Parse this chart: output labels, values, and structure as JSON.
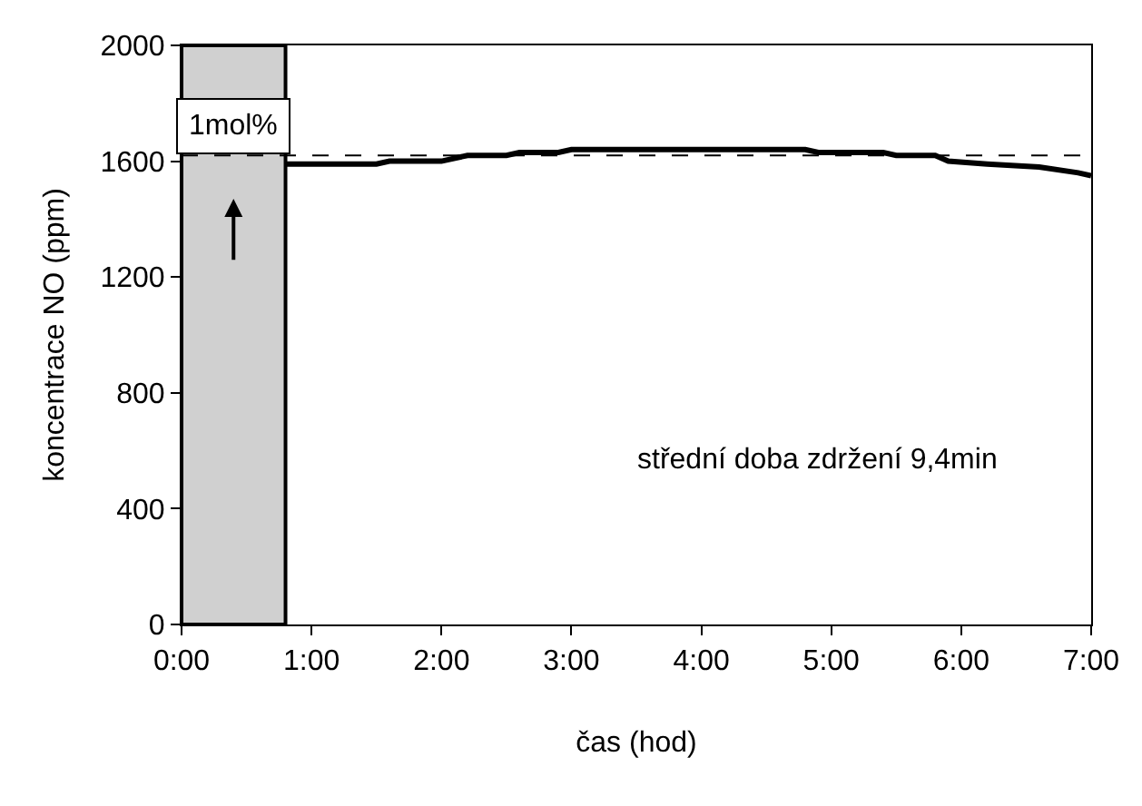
{
  "chart_data": {
    "type": "line",
    "xlabel": "čas (hod)",
    "ylabel": "koncentrace NO (ppm)",
    "x": [
      0.8,
      1.5,
      1.6,
      2.0,
      2.2,
      2.5,
      2.6,
      2.9,
      3.0,
      4.8,
      4.9,
      5.4,
      5.5,
      5.8,
      5.9,
      6.2,
      6.6,
      6.9,
      7.0
    ],
    "series": [
      {
        "color": "#000000",
        "values": [
          1590,
          1590,
          1600,
          1600,
          1620,
          1620,
          1630,
          1630,
          1640,
          1640,
          1630,
          1630,
          1620,
          1620,
          1600,
          1590,
          1580,
          1560,
          1550
        ]
      }
    ],
    "xlim": [
      0,
      7
    ],
    "xticks": [
      {
        "value": 0,
        "label": "0:00"
      },
      {
        "value": 1,
        "label": "1:00"
      },
      {
        "value": 2,
        "label": "2:00"
      },
      {
        "value": 3,
        "label": "3:00"
      },
      {
        "value": 4,
        "label": "4:00"
      },
      {
        "value": 5,
        "label": "5:00"
      },
      {
        "value": 6,
        "label": "6:00"
      },
      {
        "value": 7,
        "label": "7:00"
      }
    ],
    "ylim": [
      0,
      2000
    ],
    "yticks": [
      0,
      400,
      800,
      1200,
      1600,
      2000
    ],
    "ref_lines": [
      {
        "axis": "y",
        "value": 1620,
        "line_style": "dashed",
        "color": "#000000"
      }
    ],
    "bands": [
      {
        "axis": "x",
        "from": 0,
        "to": 0.8,
        "color": "#d0d0d0",
        "label": "1mol%"
      }
    ],
    "annotations": [
      "střední doba zdržení 9,4min"
    ],
    "grid": false,
    "legend": false,
    "marker": "none",
    "line_style": "solid"
  }
}
